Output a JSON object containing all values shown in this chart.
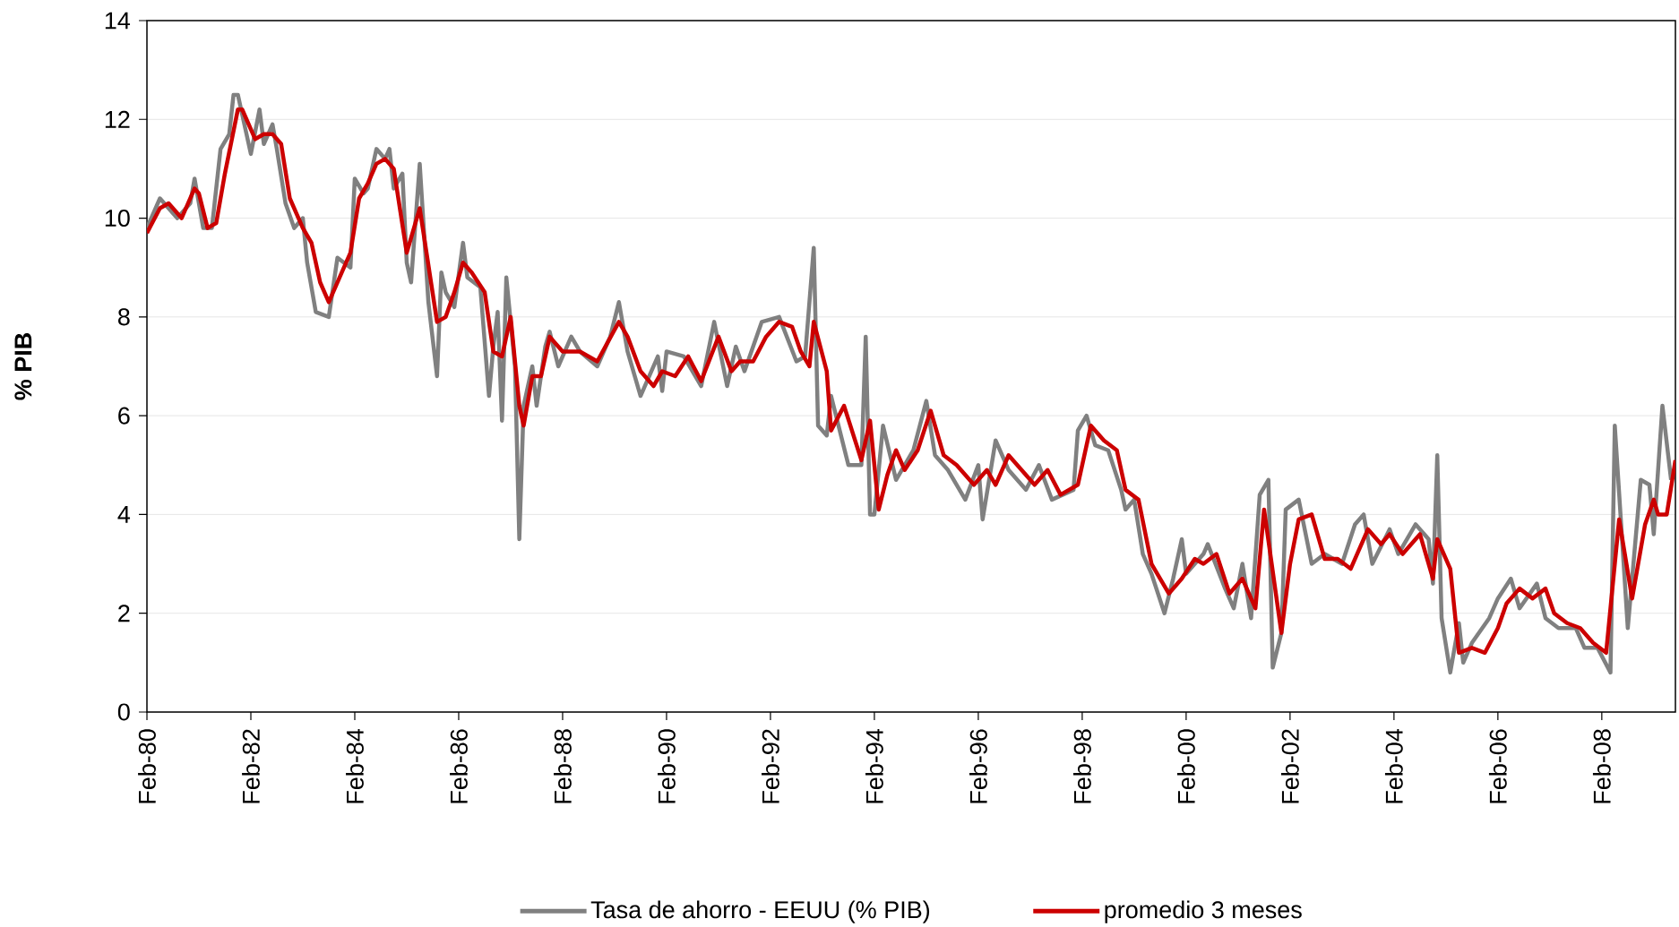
{
  "chart_data": {
    "type": "line",
    "ylabel": "% PIB",
    "xlim": [
      "1980-02",
      "2009-07"
    ],
    "xticks": [
      {
        "value": "1980-02",
        "label": "Feb-80"
      },
      {
        "value": "1982-02",
        "label": "Feb-82"
      },
      {
        "value": "1984-02",
        "label": "Feb-84"
      },
      {
        "value": "1986-02",
        "label": "Feb-86"
      },
      {
        "value": "1988-02",
        "label": "Feb-88"
      },
      {
        "value": "1990-02",
        "label": "Feb-90"
      },
      {
        "value": "1992-02",
        "label": "Feb-92"
      },
      {
        "value": "1994-02",
        "label": "Feb-94"
      },
      {
        "value": "1996-02",
        "label": "Feb-96"
      },
      {
        "value": "1998-02",
        "label": "Feb-98"
      },
      {
        "value": "2000-02",
        "label": "Feb-00"
      },
      {
        "value": "2002-02",
        "label": "Feb-02"
      },
      {
        "value": "2004-02",
        "label": "Feb-04"
      },
      {
        "value": "2006-02",
        "label": "Feb-06"
      },
      {
        "value": "2008-02",
        "label": "Feb-08"
      }
    ],
    "ylim": [
      0,
      14
    ],
    "yticks": [
      0,
      2,
      4,
      6,
      8,
      10,
      12,
      14
    ],
    "grid": "y",
    "legend": "bottom",
    "series": [
      {
        "name": "Tasa de ahorro - EEUU (% PIB)",
        "color": "#808080",
        "x": [
          "1980-02",
          "1980-05",
          "1980-09",
          "1980-12",
          "1981-01",
          "1981-03",
          "1981-05",
          "1981-07",
          "1981-09",
          "1981-10",
          "1981-11",
          "1982-02",
          "1982-04",
          "1982-05",
          "1982-07",
          "1982-08",
          "1982-10",
          "1982-12",
          "1983-02",
          "1983-03",
          "1983-05",
          "1983-08",
          "1983-10",
          "1984-01",
          "1984-02",
          "1984-04",
          "1984-05",
          "1984-07",
          "1984-09",
          "1984-10",
          "1984-11",
          "1985-01",
          "1985-02",
          "1985-03",
          "1985-05",
          "1985-07",
          "1985-09",
          "1985-10",
          "1985-11",
          "1986-01",
          "1986-03",
          "1986-04",
          "1986-07",
          "1986-09",
          "1986-10",
          "1986-11",
          "1986-12",
          "1987-01",
          "1987-03",
          "1987-04",
          "1987-05",
          "1987-07",
          "1987-08",
          "1987-10",
          "1987-11",
          "1988-01",
          "1988-04",
          "1988-06",
          "1988-10",
          "1989-01",
          "1989-03",
          "1989-05",
          "1989-08",
          "1989-12",
          "1990-01",
          "1990-02",
          "1990-06",
          "1990-10",
          "1991-01",
          "1991-04",
          "1991-06",
          "1991-08",
          "1991-12",
          "1992-04",
          "1992-08",
          "1992-10",
          "1992-12",
          "1993-01",
          "1993-03",
          "1993-04",
          "1993-08",
          "1993-11",
          "1993-12",
          "1994-01",
          "1994-02",
          "1994-04",
          "1994-07",
          "1994-11",
          "1995-02",
          "1995-04",
          "1995-07",
          "1995-11",
          "1996-02",
          "1996-03",
          "1996-06",
          "1996-09",
          "1997-01",
          "1997-04",
          "1997-07",
          "1997-12",
          "1998-01",
          "1998-03",
          "1998-05",
          "1998-08",
          "1998-11",
          "1998-12",
          "1999-02",
          "1999-04",
          "1999-06",
          "1999-09",
          "1999-11",
          "2000-01",
          "2000-02",
          "2000-06",
          "2000-07",
          "2000-11",
          "2001-01",
          "2001-03",
          "2001-05",
          "2001-07",
          "2001-09",
          "2001-10",
          "2001-12",
          "2002-01",
          "2002-04",
          "2002-07",
          "2002-10",
          "2003-02",
          "2003-05",
          "2003-07",
          "2003-09",
          "2004-01",
          "2004-03",
          "2004-07",
          "2004-10",
          "2004-11",
          "2004-12",
          "2005-01",
          "2005-03",
          "2005-05",
          "2005-06",
          "2005-08",
          "2005-12",
          "2006-02",
          "2006-05",
          "2006-07",
          "2006-11",
          "2007-01",
          "2007-04",
          "2007-08",
          "2007-10",
          "2008-01",
          "2008-04",
          "2008-05",
          "2008-08",
          "2008-11",
          "2009-01",
          "2009-02",
          "2009-04",
          "2009-06"
        ],
        "values": [
          9.8,
          10.4,
          10.0,
          10.3,
          10.8,
          9.8,
          9.8,
          11.4,
          11.7,
          12.5,
          12.5,
          11.3,
          12.2,
          11.5,
          11.9,
          11.4,
          10.3,
          9.8,
          10.0,
          9.1,
          8.1,
          8.0,
          9.2,
          9.0,
          10.8,
          10.5,
          10.6,
          11.4,
          11.2,
          11.4,
          10.6,
          10.9,
          9.1,
          8.7,
          11.1,
          8.3,
          6.8,
          8.9,
          8.5,
          8.2,
          9.5,
          8.8,
          8.6,
          6.4,
          7.4,
          8.1,
          5.9,
          8.8,
          7.0,
          3.5,
          6.2,
          7.0,
          6.2,
          7.4,
          7.7,
          7.0,
          7.6,
          7.3,
          7.0,
          7.6,
          8.3,
          7.3,
          6.4,
          7.2,
          6.5,
          7.3,
          7.2,
          6.6,
          7.9,
          6.6,
          7.4,
          6.9,
          7.9,
          8.0,
          7.1,
          7.2,
          9.4,
          5.8,
          5.6,
          6.4,
          5.0,
          5.0,
          7.6,
          4.0,
          4.0,
          5.8,
          4.7,
          5.3,
          6.3,
          5.2,
          4.9,
          4.3,
          5.0,
          3.9,
          5.5,
          4.9,
          4.5,
          5.0,
          4.3,
          4.5,
          5.7,
          6.0,
          5.4,
          5.3,
          4.5,
          4.1,
          4.3,
          3.2,
          2.8,
          2.0,
          2.7,
          3.5,
          2.8,
          3.2,
          3.4,
          2.5,
          2.1,
          3.0,
          1.9,
          4.4,
          4.7,
          0.9,
          1.6,
          4.1,
          4.3,
          3.0,
          3.2,
          3.0,
          3.8,
          4.0,
          3.0,
          3.7,
          3.2,
          3.8,
          3.5,
          2.6,
          5.2,
          1.9,
          0.8,
          1.8,
          1.0,
          1.4,
          1.9,
          2.3,
          2.7,
          2.1,
          2.6,
          1.9,
          1.7,
          1.7,
          1.3,
          1.3,
          0.8,
          5.8,
          1.7,
          4.7,
          4.6,
          3.6,
          6.2,
          4.7
        ]
      },
      {
        "name": "promedio 3 meses",
        "color": "#cc0000",
        "x": [
          "1980-02",
          "1980-05",
          "1980-07",
          "1980-10",
          "1981-01",
          "1981-02",
          "1981-04",
          "1981-06",
          "1981-08",
          "1981-11",
          "1981-12",
          "1982-03",
          "1982-05",
          "1982-07",
          "1982-09",
          "1982-11",
          "1983-02",
          "1983-04",
          "1983-06",
          "1983-08",
          "1983-11",
          "1984-01",
          "1984-03",
          "1984-05",
          "1984-07",
          "1984-09",
          "1984-11",
          "1985-02",
          "1985-05",
          "1985-09",
          "1985-11",
          "1986-01",
          "1986-03",
          "1986-05",
          "1986-08",
          "1986-10",
          "1986-12",
          "1987-02",
          "1987-04",
          "1987-05",
          "1987-07",
          "1987-09",
          "1987-11",
          "1988-02",
          "1988-06",
          "1988-10",
          "1989-03",
          "1989-05",
          "1989-08",
          "1989-11",
          "1990-01",
          "1990-04",
          "1990-07",
          "1990-10",
          "1991-02",
          "1991-05",
          "1991-07",
          "1991-10",
          "1992-01",
          "1992-04",
          "1992-07",
          "1992-09",
          "1992-11",
          "1992-12",
          "1993-03",
          "1993-04",
          "1993-07",
          "1993-11",
          "1994-01",
          "1994-03",
          "1994-05",
          "1994-07",
          "1994-09",
          "1994-12",
          "1995-03",
          "1995-06",
          "1995-09",
          "1996-01",
          "1996-04",
          "1996-06",
          "1996-09",
          "1996-12",
          "1997-03",
          "1997-06",
          "1997-09",
          "1998-01",
          "1998-04",
          "1998-07",
          "1998-10",
          "1998-12",
          "1999-03",
          "1999-06",
          "1999-10",
          "2000-01",
          "2000-04",
          "2000-06",
          "2000-09",
          "2000-12",
          "2001-03",
          "2001-06",
          "2001-08",
          "2001-12",
          "2002-02",
          "2002-04",
          "2002-07",
          "2002-10",
          "2003-01",
          "2003-04",
          "2003-08",
          "2003-11",
          "2004-01",
          "2004-04",
          "2004-08",
          "2004-11",
          "2004-12",
          "2005-03",
          "2005-05",
          "2005-08",
          "2005-11",
          "2006-02",
          "2006-04",
          "2006-07",
          "2006-10",
          "2007-01",
          "2007-03",
          "2007-06",
          "2007-09",
          "2007-12",
          "2008-03",
          "2008-06",
          "2008-09",
          "2008-12",
          "2009-02",
          "2009-03",
          "2009-05",
          "2009-07"
        ],
        "values": [
          9.7,
          10.2,
          10.3,
          10.0,
          10.6,
          10.5,
          9.8,
          9.9,
          10.9,
          12.2,
          12.2,
          11.6,
          11.7,
          11.7,
          11.5,
          10.4,
          9.8,
          9.5,
          8.7,
          8.3,
          8.9,
          9.3,
          10.4,
          10.7,
          11.1,
          11.2,
          11.0,
          9.3,
          10.2,
          7.9,
          8.0,
          8.5,
          9.1,
          8.9,
          8.5,
          7.3,
          7.2,
          8.0,
          6.2,
          5.8,
          6.8,
          6.8,
          7.6,
          7.3,
          7.3,
          7.1,
          7.9,
          7.6,
          6.9,
          6.6,
          6.9,
          6.8,
          7.2,
          6.7,
          7.6,
          6.9,
          7.1,
          7.1,
          7.6,
          7.9,
          7.8,
          7.3,
          7.0,
          7.9,
          6.9,
          5.7,
          6.2,
          5.1,
          5.9,
          4.1,
          4.8,
          5.3,
          4.9,
          5.3,
          6.1,
          5.2,
          5.0,
          4.6,
          4.9,
          4.6,
          5.2,
          4.9,
          4.6,
          4.9,
          4.4,
          4.6,
          5.8,
          5.5,
          5.3,
          4.5,
          4.3,
          3.0,
          2.4,
          2.7,
          3.1,
          3.0,
          3.2,
          2.4,
          2.7,
          2.1,
          4.1,
          1.6,
          3.0,
          3.9,
          4.0,
          3.1,
          3.1,
          2.9,
          3.7,
          3.4,
          3.6,
          3.2,
          3.6,
          2.7,
          3.5,
          2.9,
          1.2,
          1.3,
          1.2,
          1.7,
          2.2,
          2.5,
          2.3,
          2.5,
          2.0,
          1.8,
          1.7,
          1.4,
          1.2,
          3.9,
          2.3,
          3.8,
          4.3,
          4.0,
          4.0,
          5.1
        ]
      }
    ]
  }
}
